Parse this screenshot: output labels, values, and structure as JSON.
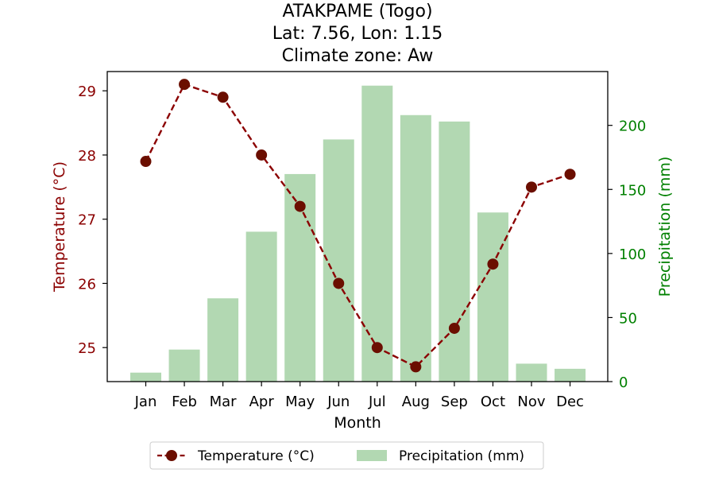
{
  "chart_data": {
    "type": "bar+line",
    "title": [
      "ATAKPAME (Togo)",
      "Lat: 7.56, Lon: 1.15",
      "Climate zone: Aw"
    ],
    "xlabel": "Month",
    "categories": [
      "Jan",
      "Feb",
      "Mar",
      "Apr",
      "May",
      "Jun",
      "Jul",
      "Aug",
      "Sep",
      "Oct",
      "Nov",
      "Dec"
    ],
    "series": [
      {
        "name": "Temperature (°C)",
        "type": "line",
        "axis": "left",
        "values": [
          27.9,
          29.1,
          28.9,
          28.0,
          27.2,
          26.0,
          25.0,
          24.7,
          25.3,
          26.3,
          27.5,
          27.7
        ],
        "color": "#8b0000",
        "marker_color": "#6b0e00"
      },
      {
        "name": "Precipitation (mm)",
        "type": "bar",
        "axis": "right",
        "values": [
          7,
          25,
          65,
          117,
          162,
          189,
          231,
          208,
          203,
          132,
          14,
          10
        ],
        "color": "#b2d8b2"
      }
    ],
    "y_left": {
      "label": "Temperature (°C)",
      "lim": [
        24.47,
        29.3
      ],
      "ticks": [
        25,
        26,
        27,
        28,
        29
      ],
      "color": "#8b0000"
    },
    "y_right": {
      "label": "Precipitation (mm)",
      "lim": [
        0,
        242
      ],
      "ticks": [
        0,
        50,
        100,
        150,
        200
      ],
      "color": "#008000"
    },
    "grid": false,
    "legend": {
      "placement": "bottom-center",
      "entries": [
        "Temperature (°C)",
        "Precipitation (mm)"
      ]
    }
  }
}
